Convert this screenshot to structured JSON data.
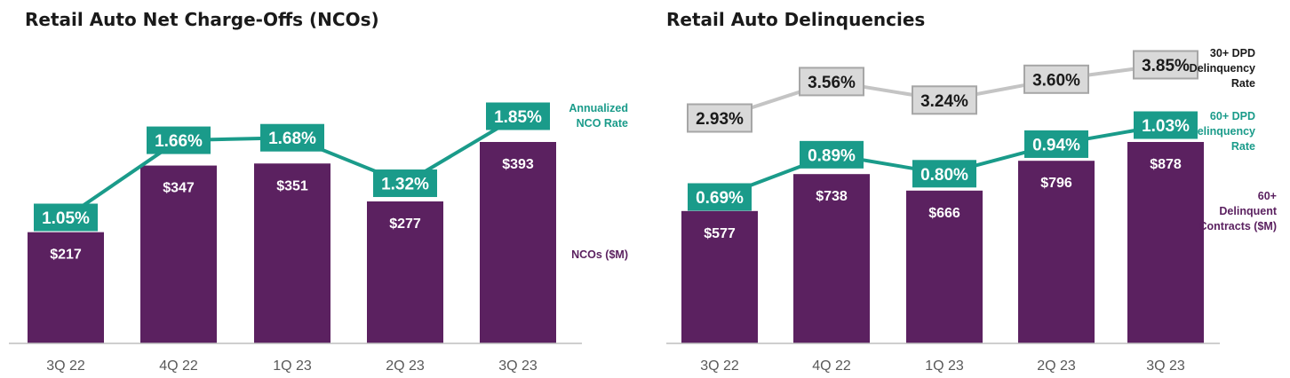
{
  "colors": {
    "bar": "#5b2160",
    "teal": "#1a9b8a",
    "gray_line": "#c4c4c4",
    "gray_box_fill": "#d9d9d9",
    "gray_box_stroke": "#a6a6a6",
    "legend_dark": "#1a1a1a"
  },
  "chart_data": [
    {
      "type": "bar",
      "title": "Retail Auto Net Charge-Offs (NCOs)",
      "categories": [
        "3Q 22",
        "4Q 22",
        "1Q 23",
        "2Q 23",
        "3Q 23"
      ],
      "ylim": [
        0,
        393
      ],
      "grid": false,
      "series": [
        {
          "name": "NCOs ($M)",
          "kind": "bar",
          "values": [
            217,
            347,
            351,
            277,
            393
          ],
          "labels": [
            "$217",
            "$347",
            "$351",
            "$277",
            "$393"
          ]
        },
        {
          "name": "Annualized NCO Rate",
          "kind": "line",
          "values": [
            1.05,
            1.66,
            1.68,
            1.32,
            1.85
          ],
          "labels": [
            "1.05%",
            "1.66%",
            "1.68%",
            "1.32%",
            "1.85%"
          ]
        }
      ]
    },
    {
      "type": "bar",
      "title": "Retail Auto Delinquencies",
      "categories": [
        "3Q 22",
        "4Q 22",
        "1Q 23",
        "2Q 23",
        "3Q 23"
      ],
      "ylim": [
        0,
        878
      ],
      "grid": false,
      "series": [
        {
          "name": "60+ Delinquent Contracts ($M)",
          "kind": "bar",
          "values": [
            577,
            738,
            666,
            796,
            878
          ],
          "labels": [
            "$577",
            "$738",
            "$666",
            "$796",
            "$878"
          ]
        },
        {
          "name": "30+ DPD Delinquency Rate",
          "kind": "line",
          "values": [
            2.93,
            3.56,
            3.24,
            3.6,
            3.85
          ],
          "labels": [
            "2.93%",
            "3.56%",
            "3.24%",
            "3.60%",
            "3.85%"
          ]
        },
        {
          "name": "60+ DPD Delinquency Rate",
          "kind": "line",
          "values": [
            0.69,
            0.89,
            0.8,
            0.94,
            1.03
          ],
          "labels": [
            "0.69%",
            "0.89%",
            "0.80%",
            "0.94%",
            "1.03%"
          ]
        }
      ]
    }
  ],
  "legend": {
    "nco_rate": [
      "Annualized",
      "NCO Rate"
    ],
    "nco_bars": [
      "NCOs ($M)"
    ],
    "dpd30": [
      "30+ DPD",
      "Delinquency",
      "Rate"
    ],
    "dpd60": [
      "60+ DPD",
      "Delinquency",
      "Rate"
    ],
    "contracts60": [
      "60+",
      "Delinquent",
      "Contracts ($M)"
    ]
  }
}
